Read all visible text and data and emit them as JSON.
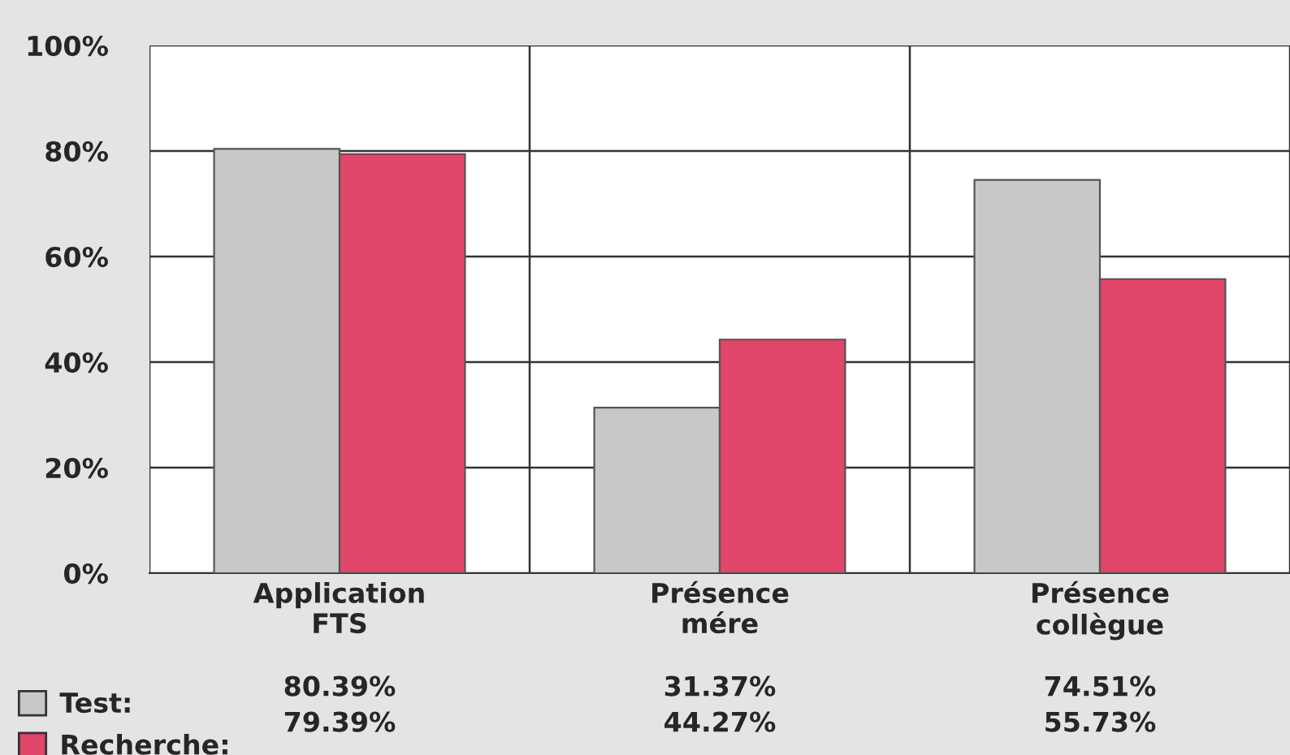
{
  "chart_data": {
    "type": "bar",
    "categories": [
      "Application\nFTS",
      "Présence\nmére",
      "Présence\ncollègue"
    ],
    "series": [
      {
        "name": "Test:",
        "color": "#c8c8c8",
        "values": [
          80.39,
          31.37,
          74.51
        ],
        "value_labels": [
          "80.39%",
          "31.37%",
          "74.51%"
        ]
      },
      {
        "name": "Recherche:",
        "color": "#e0456a",
        "values": [
          79.39,
          44.27,
          55.73
        ],
        "value_labels": [
          "79.39%",
          "44.27%",
          "55.73%"
        ]
      }
    ],
    "ylim": [
      0,
      100
    ],
    "yticks": [
      {
        "value": 0,
        "label": "0%"
      },
      {
        "value": 20,
        "label": "20%"
      },
      {
        "value": 40,
        "label": "40%"
      },
      {
        "value": 60,
        "label": "60%"
      },
      {
        "value": 80,
        "label": "80%"
      },
      {
        "value": 100,
        "label": "100%"
      }
    ],
    "grid": "y",
    "legend": "bottom left"
  }
}
